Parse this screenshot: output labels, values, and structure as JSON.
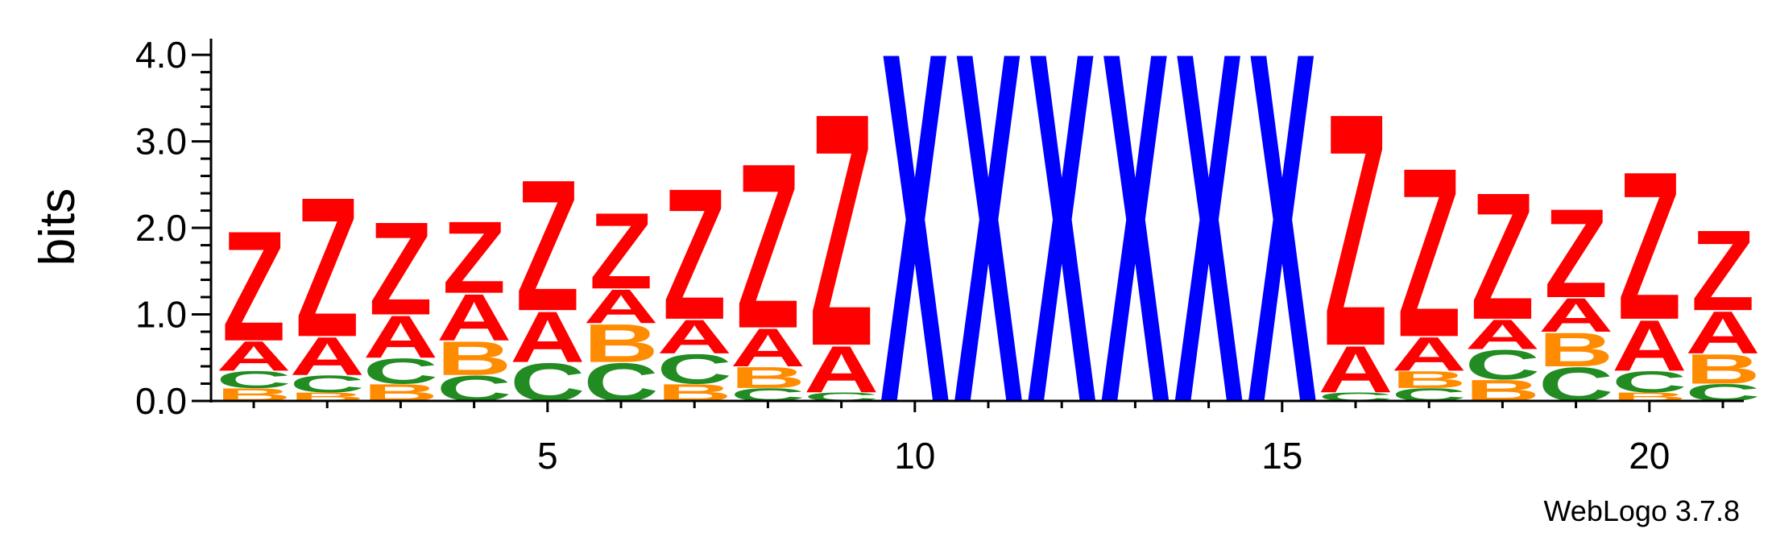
{
  "chart_data": {
    "type": "sequence-logo",
    "ylabel": "bits",
    "ylim": [
      0,
      4.15
    ],
    "y_ticks": [
      "0.0",
      "1.0",
      "2.0",
      "3.0",
      "4.0"
    ],
    "x_ticks": [
      "5",
      "10",
      "15",
      "20"
    ],
    "x_tick_positions": [
      5,
      10,
      15,
      20
    ],
    "credit": "WebLogo 3.7.8",
    "colors": {
      "Z": "#ff0000",
      "A": "#ff0000",
      "X": "#0000ff",
      "C": "#228b22",
      "B": "#ff8c00"
    },
    "positions": [
      {
        "pos": 1,
        "stack": [
          {
            "l": "B",
            "h": 0.15
          },
          {
            "l": "C",
            "h": 0.2
          },
          {
            "l": "A",
            "h": 0.35
          },
          {
            "l": "Z",
            "h": 1.3
          }
        ]
      },
      {
        "pos": 2,
        "stack": [
          {
            "l": "B",
            "h": 0.1
          },
          {
            "l": "C",
            "h": 0.2
          },
          {
            "l": "A",
            "h": 0.45
          },
          {
            "l": "Z",
            "h": 1.65
          }
        ]
      },
      {
        "pos": 3,
        "stack": [
          {
            "l": "B",
            "h": 0.2
          },
          {
            "l": "C",
            "h": 0.3
          },
          {
            "l": "A",
            "h": 0.5
          },
          {
            "l": "Z",
            "h": 1.1
          }
        ]
      },
      {
        "pos": 4,
        "stack": [
          {
            "l": "C",
            "h": 0.3
          },
          {
            "l": "B",
            "h": 0.4
          },
          {
            "l": "A",
            "h": 0.55
          },
          {
            "l": "Z",
            "h": 0.85
          }
        ]
      },
      {
        "pos": 5,
        "stack": [
          {
            "l": "C",
            "h": 0.45
          },
          {
            "l": "A",
            "h": 0.6
          },
          {
            "l": "Z",
            "h": 1.55
          }
        ]
      },
      {
        "pos": 6,
        "stack": [
          {
            "l": "C",
            "h": 0.45
          },
          {
            "l": "B",
            "h": 0.45
          },
          {
            "l": "A",
            "h": 0.4
          },
          {
            "l": "Z",
            "h": 0.9
          }
        ]
      },
      {
        "pos": 7,
        "stack": [
          {
            "l": "B",
            "h": 0.2
          },
          {
            "l": "C",
            "h": 0.35
          },
          {
            "l": "A",
            "h": 0.4
          },
          {
            "l": "Z",
            "h": 1.55
          }
        ]
      },
      {
        "pos": 8,
        "stack": [
          {
            "l": "C",
            "h": 0.15
          },
          {
            "l": "B",
            "h": 0.25
          },
          {
            "l": "A",
            "h": 0.45
          },
          {
            "l": "Z",
            "h": 1.95
          }
        ]
      },
      {
        "pos": 9,
        "stack": [
          {
            "l": "C",
            "h": 0.1
          },
          {
            "l": "A",
            "h": 0.55
          },
          {
            "l": "Z",
            "h": 2.75
          }
        ]
      },
      {
        "pos": 10,
        "stack": [
          {
            "l": "X",
            "h": 4.15
          }
        ]
      },
      {
        "pos": 11,
        "stack": [
          {
            "l": "X",
            "h": 4.15
          }
        ]
      },
      {
        "pos": 12,
        "stack": [
          {
            "l": "X",
            "h": 4.15
          }
        ]
      },
      {
        "pos": 13,
        "stack": [
          {
            "l": "X",
            "h": 4.15
          }
        ]
      },
      {
        "pos": 14,
        "stack": [
          {
            "l": "X",
            "h": 4.15
          }
        ]
      },
      {
        "pos": 15,
        "stack": [
          {
            "l": "X",
            "h": 4.15
          }
        ]
      },
      {
        "pos": 16,
        "stack": [
          {
            "l": "C",
            "h": 0.1
          },
          {
            "l": "A",
            "h": 0.55
          },
          {
            "l": "Z",
            "h": 2.75
          }
        ]
      },
      {
        "pos": 17,
        "stack": [
          {
            "l": "C",
            "h": 0.15
          },
          {
            "l": "B",
            "h": 0.2
          },
          {
            "l": "A",
            "h": 0.4
          },
          {
            "l": "Z",
            "h": 2.0
          }
        ]
      },
      {
        "pos": 18,
        "stack": [
          {
            "l": "B",
            "h": 0.25
          },
          {
            "l": "C",
            "h": 0.35
          },
          {
            "l": "A",
            "h": 0.35
          },
          {
            "l": "Z",
            "h": 1.5
          }
        ]
      },
      {
        "pos": 19,
        "stack": [
          {
            "l": "C",
            "h": 0.4
          },
          {
            "l": "B",
            "h": 0.4
          },
          {
            "l": "A",
            "h": 0.4
          },
          {
            "l": "Z",
            "h": 1.05
          }
        ]
      },
      {
        "pos": 20,
        "stack": [
          {
            "l": "B",
            "h": 0.1
          },
          {
            "l": "C",
            "h": 0.25
          },
          {
            "l": "A",
            "h": 0.6
          },
          {
            "l": "Z",
            "h": 1.75
          }
        ]
      },
      {
        "pos": 21,
        "stack": [
          {
            "l": "C",
            "h": 0.2
          },
          {
            "l": "B",
            "h": 0.35
          },
          {
            "l": "A",
            "h": 0.5
          },
          {
            "l": "Z",
            "h": 0.95
          }
        ]
      }
    ]
  }
}
